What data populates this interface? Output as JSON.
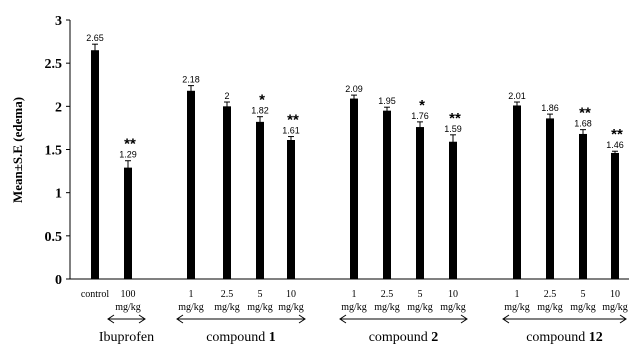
{
  "chart_data": {
    "type": "bar",
    "ylabel": "Mean±S.E (edema)",
    "xlabel": "",
    "ylim": [
      0,
      3
    ],
    "y_ticks": [
      "0",
      "0.5",
      "1",
      "1.5",
      "2",
      "2.5",
      "3"
    ],
    "grid": false,
    "legend": "none",
    "bar_color": "#000000",
    "bars": [
      {
        "top": "control",
        "bottom": "",
        "value": 2.65,
        "err": 0.07,
        "label": "2.65",
        "sig": ""
      },
      {
        "top": "100",
        "bottom": "mg/kg",
        "value": 1.29,
        "err": 0.08,
        "label": "1.29",
        "sig": "**"
      },
      {
        "top": "1",
        "bottom": "mg/kg",
        "value": 2.18,
        "err": 0.06,
        "label": "2.18",
        "sig": ""
      },
      {
        "top": "2.5",
        "bottom": "mg/kg",
        "value": 2.0,
        "err": 0.05,
        "label": "2",
        "sig": ""
      },
      {
        "top": "5",
        "bottom": "mg/kg",
        "value": 1.82,
        "err": 0.06,
        "label": "1.82",
        "sig": "*"
      },
      {
        "top": "10",
        "bottom": "mg/kg",
        "value": 1.61,
        "err": 0.04,
        "label": "1.61",
        "sig": "**"
      },
      {
        "top": "1",
        "bottom": "mg/kg",
        "value": 2.09,
        "err": 0.04,
        "label": "2.09",
        "sig": ""
      },
      {
        "top": "2.5",
        "bottom": "mg/kg",
        "value": 1.95,
        "err": 0.04,
        "label": "1.95",
        "sig": ""
      },
      {
        "top": "5",
        "bottom": "mg/kg",
        "value": 1.76,
        "err": 0.06,
        "label": "1.76",
        "sig": "*"
      },
      {
        "top": "10",
        "bottom": "mg/kg",
        "value": 1.59,
        "err": 0.08,
        "label": "1.59",
        "sig": "**"
      },
      {
        "top": "1",
        "bottom": "mg/kg",
        "value": 2.01,
        "err": 0.04,
        "label": "2.01",
        "sig": ""
      },
      {
        "top": "2.5",
        "bottom": "mg/kg",
        "value": 1.86,
        "err": 0.05,
        "label": "1.86",
        "sig": ""
      },
      {
        "top": "5",
        "bottom": "mg/kg",
        "value": 1.68,
        "err": 0.05,
        "label": "1.68",
        "sig": "**"
      },
      {
        "top": "10",
        "bottom": "mg/kg",
        "value": 1.46,
        "err": 0.02,
        "label": "1.46",
        "sig": "**"
      }
    ],
    "groups": [
      {
        "name": "Ibuprofen",
        "number": ""
      },
      {
        "name": "compound ",
        "number": "1"
      },
      {
        "name": "compound ",
        "number": "2"
      },
      {
        "name": "compound ",
        "number": "12"
      }
    ]
  }
}
